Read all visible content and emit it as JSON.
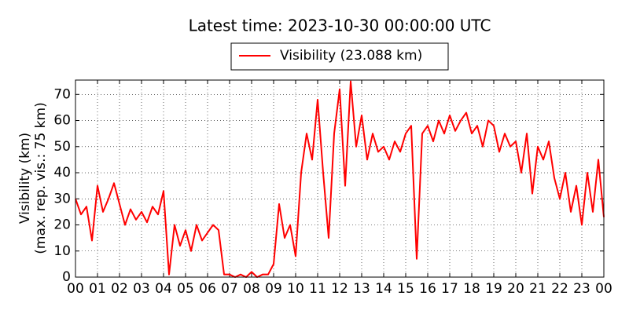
{
  "chart_data": {
    "type": "line",
    "title": "Latest time: 2023-10-30 00:00:00 UTC",
    "ylabel": [
      "Visibility (km)",
      "(max. rep. vis.: 75 km)"
    ],
    "x": [
      0,
      0.25,
      0.5,
      0.75,
      1,
      1.25,
      1.5,
      1.75,
      2,
      2.25,
      2.5,
      2.75,
      3,
      3.25,
      3.5,
      3.75,
      4,
      4.25,
      4.5,
      4.75,
      5,
      5.25,
      5.5,
      5.75,
      6,
      6.25,
      6.5,
      6.75,
      7,
      7.25,
      7.5,
      7.75,
      8,
      8.25,
      8.5,
      8.75,
      9,
      9.25,
      9.5,
      9.75,
      10,
      10.25,
      10.5,
      10.75,
      11,
      11.25,
      11.5,
      11.75,
      12,
      12.25,
      12.5,
      12.75,
      13,
      13.25,
      13.5,
      13.75,
      14,
      14.25,
      14.5,
      14.75,
      15,
      15.25,
      15.5,
      15.75,
      16,
      16.25,
      16.5,
      16.75,
      17,
      17.25,
      17.5,
      17.75,
      18,
      18.25,
      18.5,
      18.75,
      19,
      19.25,
      19.5,
      19.75,
      20,
      20.25,
      20.5,
      20.75,
      21,
      21.25,
      21.5,
      21.75,
      22,
      22.25,
      22.5,
      22.75,
      23,
      23.25,
      23.5,
      23.75,
      24
    ],
    "series": [
      {
        "name": "Visibility (23.088 km)",
        "color": "#ff0000",
        "values": [
          30,
          24,
          27,
          14,
          35,
          25,
          30,
          36,
          28,
          20,
          26,
          22,
          25,
          21,
          27,
          24,
          33,
          1,
          20,
          12,
          18,
          10,
          20,
          14,
          17,
          20,
          18,
          1,
          1,
          0,
          1,
          0,
          2,
          0,
          1,
          1,
          5,
          28,
          15,
          20,
          8,
          40,
          55,
          45,
          68,
          40,
          15,
          55,
          72,
          35,
          75,
          50,
          62,
          45,
          55,
          48,
          50,
          45,
          52,
          48,
          55,
          58,
          7,
          55,
          58,
          52,
          60,
          55,
          62,
          56,
          60,
          63,
          55,
          58,
          50,
          60,
          58,
          48,
          55,
          50,
          52,
          40,
          55,
          32,
          50,
          45,
          52,
          38,
          30,
          40,
          25,
          35,
          20,
          40,
          25,
          45,
          23
        ]
      }
    ],
    "xlim": [
      0,
      24
    ],
    "ylim": [
      0,
      75.5
    ],
    "xticks": [
      {
        "value": 0,
        "label": "00"
      },
      {
        "value": 1,
        "label": "01"
      },
      {
        "value": 2,
        "label": "02"
      },
      {
        "value": 3,
        "label": "03"
      },
      {
        "value": 4,
        "label": "04"
      },
      {
        "value": 5,
        "label": "05"
      },
      {
        "value": 6,
        "label": "06"
      },
      {
        "value": 7,
        "label": "07"
      },
      {
        "value": 8,
        "label": "08"
      },
      {
        "value": 9,
        "label": "09"
      },
      10,
      11,
      12,
      13,
      14,
      15,
      16,
      17,
      18,
      19,
      20,
      21,
      22,
      23,
      {
        "value": 24,
        "label": "00"
      }
    ],
    "yticks": [
      0,
      10,
      20,
      30,
      40,
      50,
      60,
      70
    ],
    "grid": true
  }
}
